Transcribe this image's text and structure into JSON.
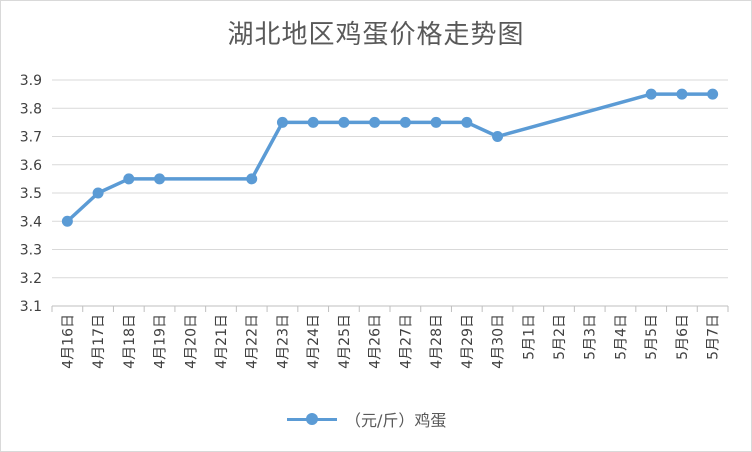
{
  "chart_data": {
    "type": "line",
    "title": "湖北地区鸡蛋价格走势图",
    "categories": [
      "4月16日",
      "4月17日",
      "4月18日",
      "4月19日",
      "4月20日",
      "4月21日",
      "4月22日",
      "4月23日",
      "4月24日",
      "4月25日",
      "4月26日",
      "4月27日",
      "4月28日",
      "4月29日",
      "4月30日",
      "5月1日",
      "5月2日",
      "5月3日",
      "5月4日",
      "5月5日",
      "5月6日",
      "5月7日"
    ],
    "series": [
      {
        "name": "（元/斤）鸡蛋",
        "color": "#5b9bd5",
        "values": [
          3.4,
          3.5,
          3.55,
          3.55,
          null,
          null,
          3.55,
          3.75,
          3.75,
          3.75,
          3.75,
          3.75,
          3.75,
          3.75,
          3.7,
          null,
          null,
          null,
          null,
          3.85,
          3.85,
          3.85
        ]
      }
    ],
    "yticks": [
      "3.1",
      "3.2",
      "3.3",
      "3.4",
      "3.5",
      "3.6",
      "3.7",
      "3.8",
      "3.9"
    ],
    "ylim": [
      3.1,
      3.9
    ],
    "grid": true,
    "legend_position": "bottom",
    "gap_handling": "connect"
  }
}
